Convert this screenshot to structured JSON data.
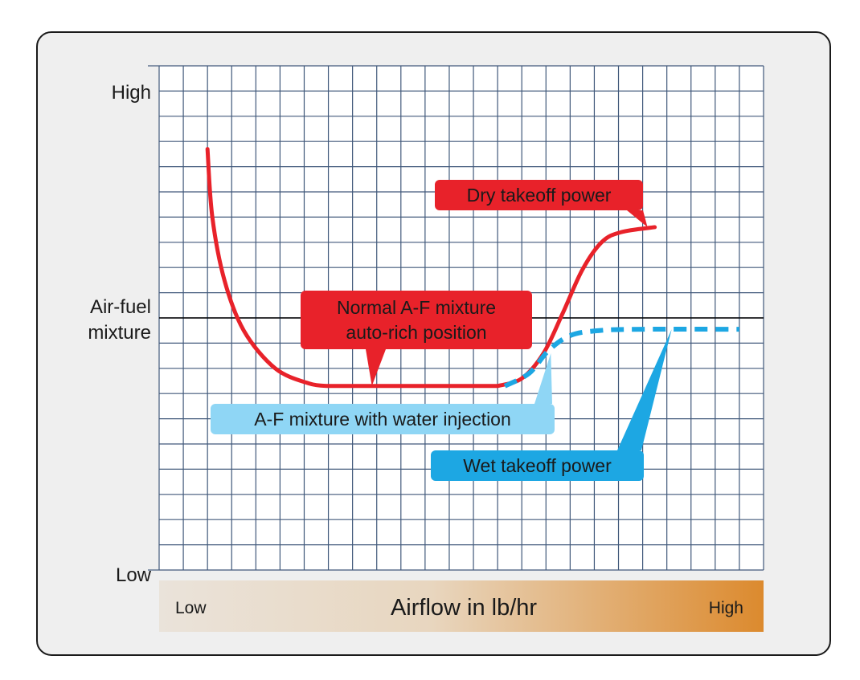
{
  "chart_data": {
    "type": "line",
    "xlabel": "Airflow in lb/hr",
    "x_axis_labels": {
      "low": "Low",
      "high": "High"
    },
    "ylabel": "Air-fuel\nmixture",
    "ylabel_lines": [
      "Air-fuel",
      "mixture"
    ],
    "y_axis_labels": {
      "high": "High",
      "low": "Low"
    },
    "xlim": [
      0,
      25
    ],
    "ylim": [
      0,
      20
    ],
    "grid": true,
    "reference_line_y": 10,
    "series": [
      {
        "name": "Normal A-F mixture auto-rich position",
        "color": "#e8222a",
        "style": "solid",
        "points": [
          [
            2,
            16.7
          ],
          [
            2.2,
            14
          ],
          [
            2.7,
            11.5
          ],
          [
            3.5,
            9.5
          ],
          [
            4.8,
            8
          ],
          [
            6.2,
            7.4
          ],
          [
            7,
            7.3
          ]
        ]
      },
      {
        "name": "Normal A-F mixture auto-rich position",
        "color": "#e8222a",
        "style": "solid",
        "points": [
          [
            7,
            7.3
          ],
          [
            14,
            7.3
          ]
        ]
      },
      {
        "name": "Dry takeoff power",
        "color": "#e8222a",
        "style": "solid",
        "points": [
          [
            14,
            7.3
          ],
          [
            15,
            7.6
          ],
          [
            15.9,
            8.6
          ],
          [
            16.7,
            10.2
          ],
          [
            17.5,
            11.9
          ],
          [
            18.3,
            13
          ],
          [
            19.1,
            13.4
          ],
          [
            20.5,
            13.6
          ]
        ]
      },
      {
        "name": "Wet takeoff power",
        "color": "#1da7e3",
        "style": "dashed",
        "points": [
          [
            14.3,
            7.3
          ],
          [
            15.3,
            7.8
          ],
          [
            16.1,
            8.7
          ],
          [
            17,
            9.3
          ],
          [
            18.2,
            9.5
          ],
          [
            20,
            9.55
          ],
          [
            24,
            9.55
          ]
        ]
      }
    ],
    "annotations": [
      {
        "lines": [
          "Dry takeoff power"
        ],
        "color": "#e8222a",
        "text_color": "#1a1a1a",
        "points_to": [
          20.2,
          13.6
        ]
      },
      {
        "lines": [
          "Normal A-F mixture",
          "auto-rich position"
        ],
        "color": "#e8222a",
        "text_color": "#1a1a1a",
        "points_to": [
          8.8,
          7.3
        ]
      },
      {
        "lines": [
          "A-F mixture with water injection"
        ],
        "color": "#8fd6f5",
        "text_color": "#1a1a1a",
        "points_to": [
          16.2,
          8.6
        ]
      },
      {
        "lines": [
          "Wet takeoff power"
        ],
        "color": "#1da7e3",
        "text_color": "#1a1a1a",
        "points_to": [
          21.2,
          9.55
        ]
      }
    ],
    "colors": {
      "panel_bg": "#efefef",
      "grid": "#40587a",
      "axis_band_start": "#eae3da",
      "axis_band_end": "#dc8a2e",
      "reference_line": "#000000"
    }
  }
}
